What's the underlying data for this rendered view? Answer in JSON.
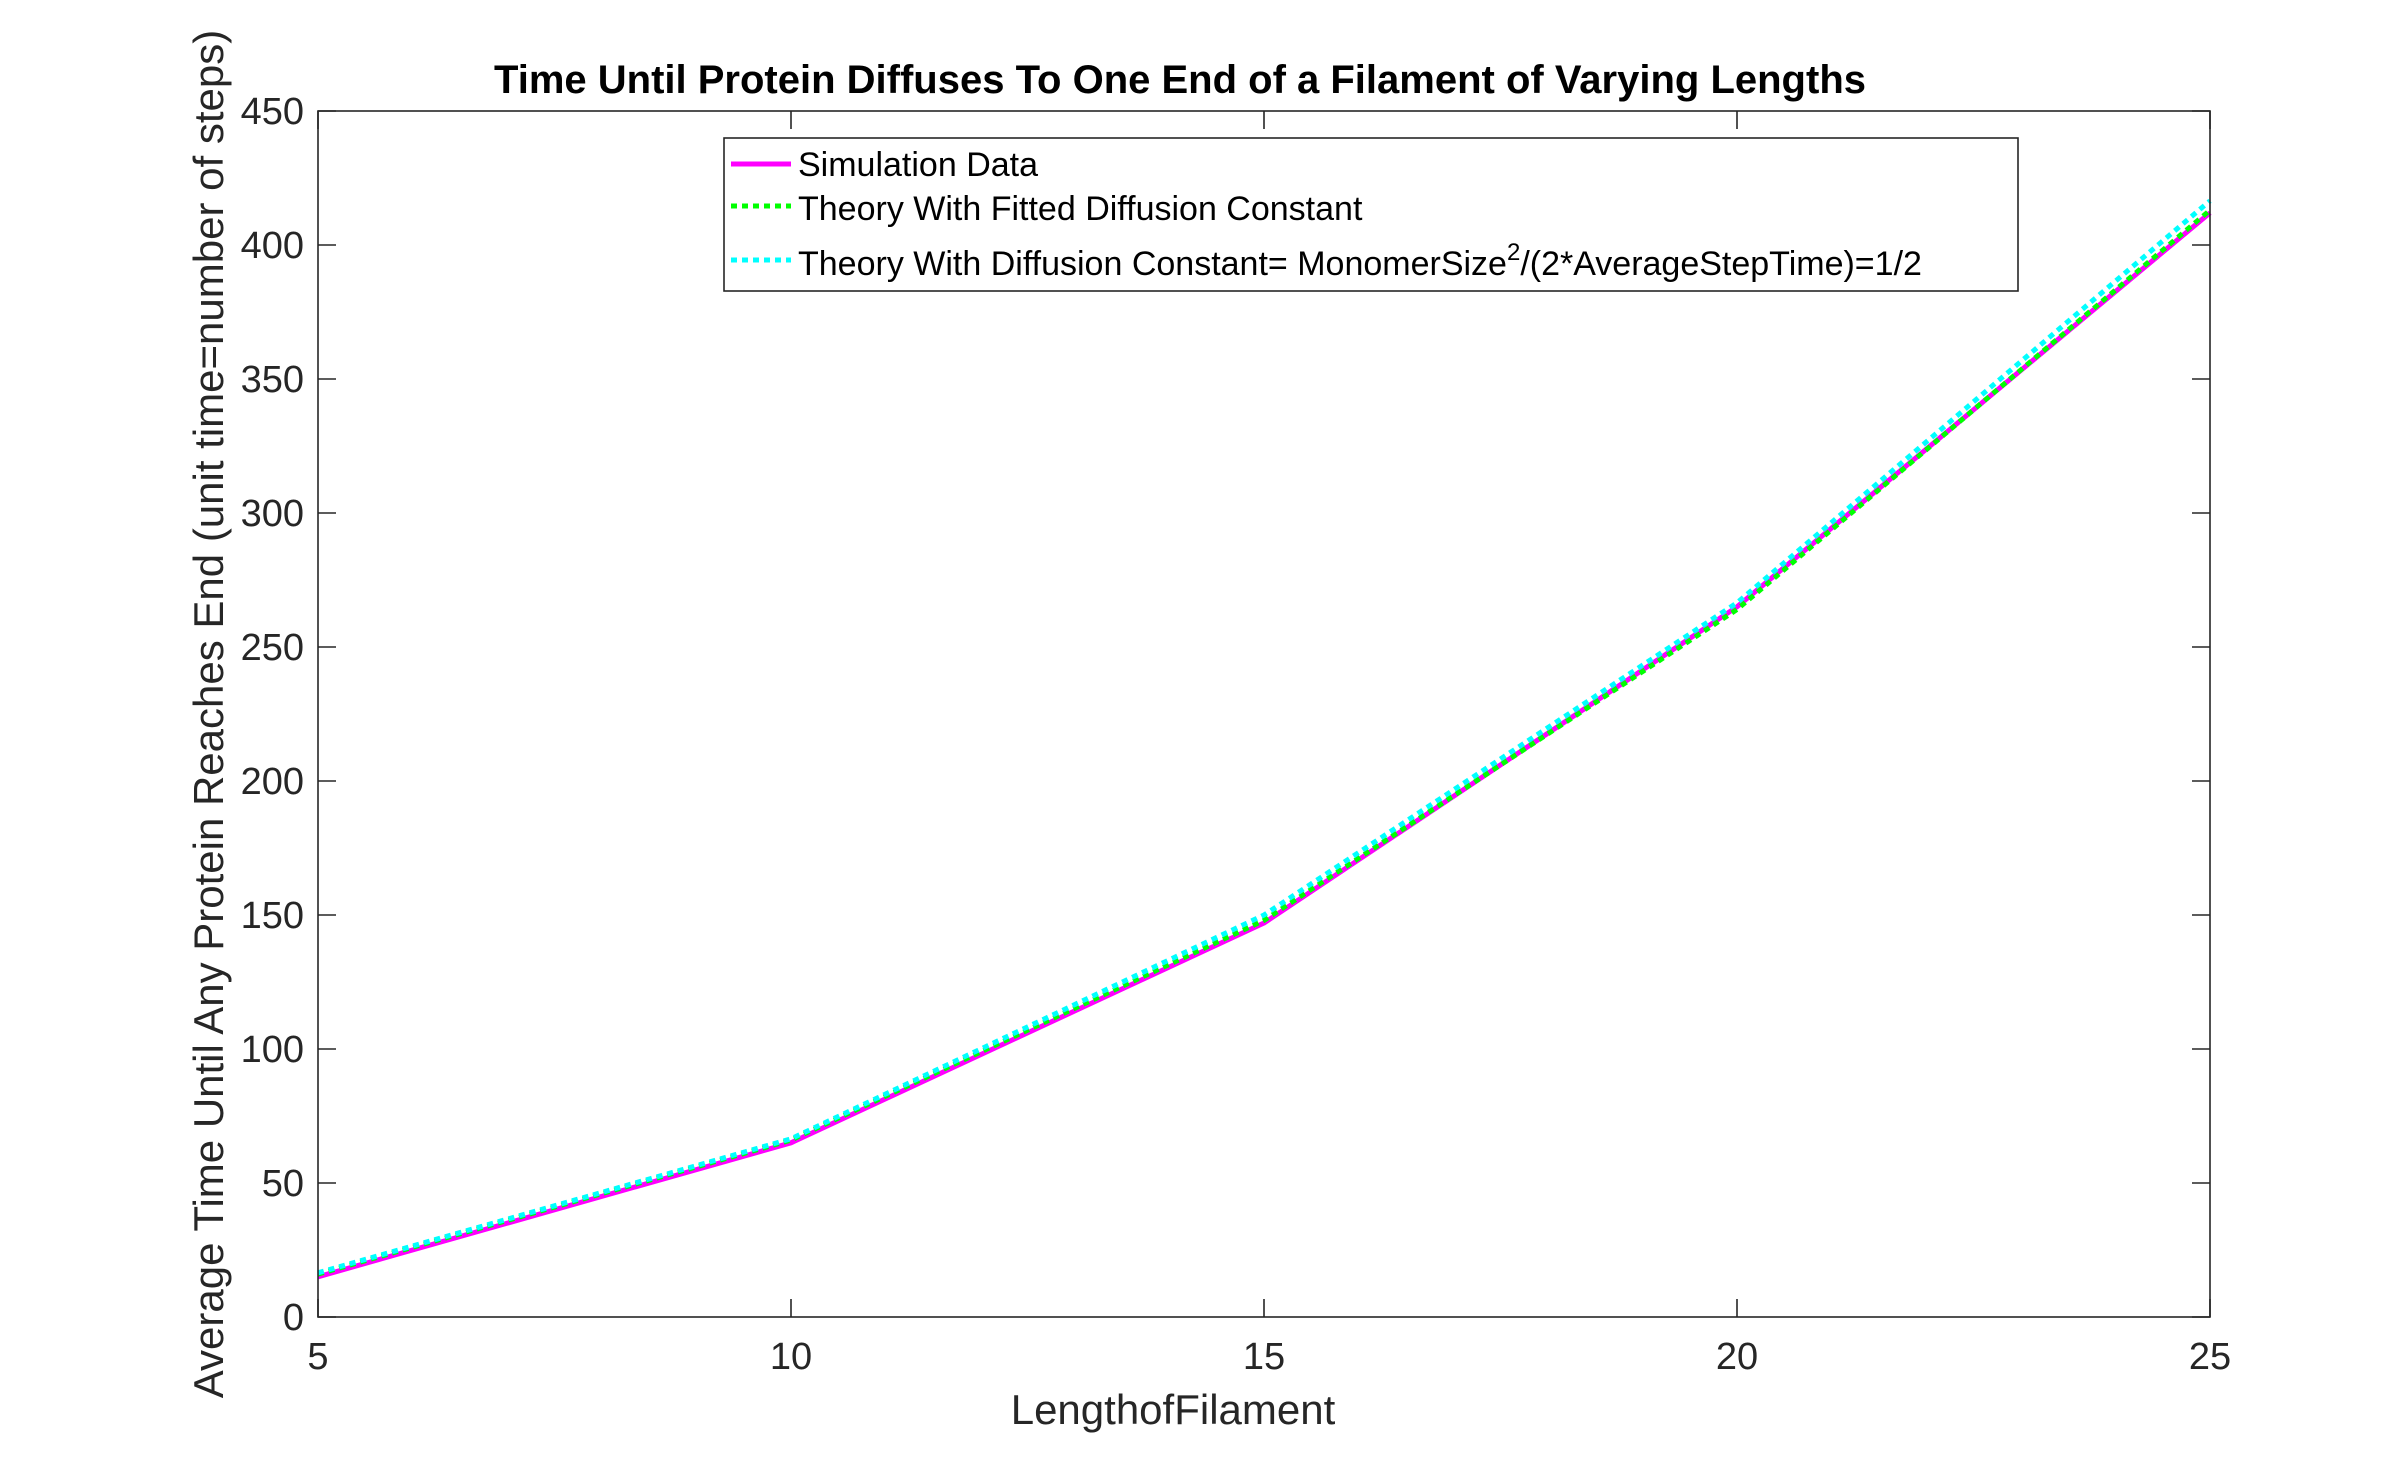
{
  "chart_data": {
    "type": "line",
    "title": "Time Until Protein Diffuses To One End of a Filament of Varying Lengths",
    "xlabel": "LengthofFilament",
    "ylabel": "Average Time Until Any Protein Reaches End (unit time=number of steps)",
    "xlim": [
      5,
      25
    ],
    "ylim": [
      0,
      450
    ],
    "xticks": [
      5,
      10,
      15,
      20,
      25
    ],
    "yticks": [
      0,
      50,
      100,
      150,
      200,
      250,
      300,
      350,
      400,
      450
    ],
    "grid": false,
    "legend_position": "top-center",
    "x": [
      5,
      10,
      15,
      20,
      25
    ],
    "series": [
      {
        "name": "Simulation Data",
        "values": [
          15,
          65,
          147,
          265,
          412
        ],
        "color": "#ff00ff",
        "style": "solid"
      },
      {
        "name": "Theory With Fitted Diffusion Constant",
        "values": [
          16,
          66,
          148,
          264,
          413
        ],
        "color": "#00ff00",
        "style": "dotted"
      },
      {
        "name": "Theory With Diffusion Constant= MonomerSize",
        "name_superscript": "2",
        "name_suffix": "/(2*AverageStepTime)=1/2",
        "values": [
          16.5,
          66.5,
          150,
          266.5,
          416.5
        ],
        "color": "#00ffff",
        "style": "dotted"
      }
    ]
  }
}
